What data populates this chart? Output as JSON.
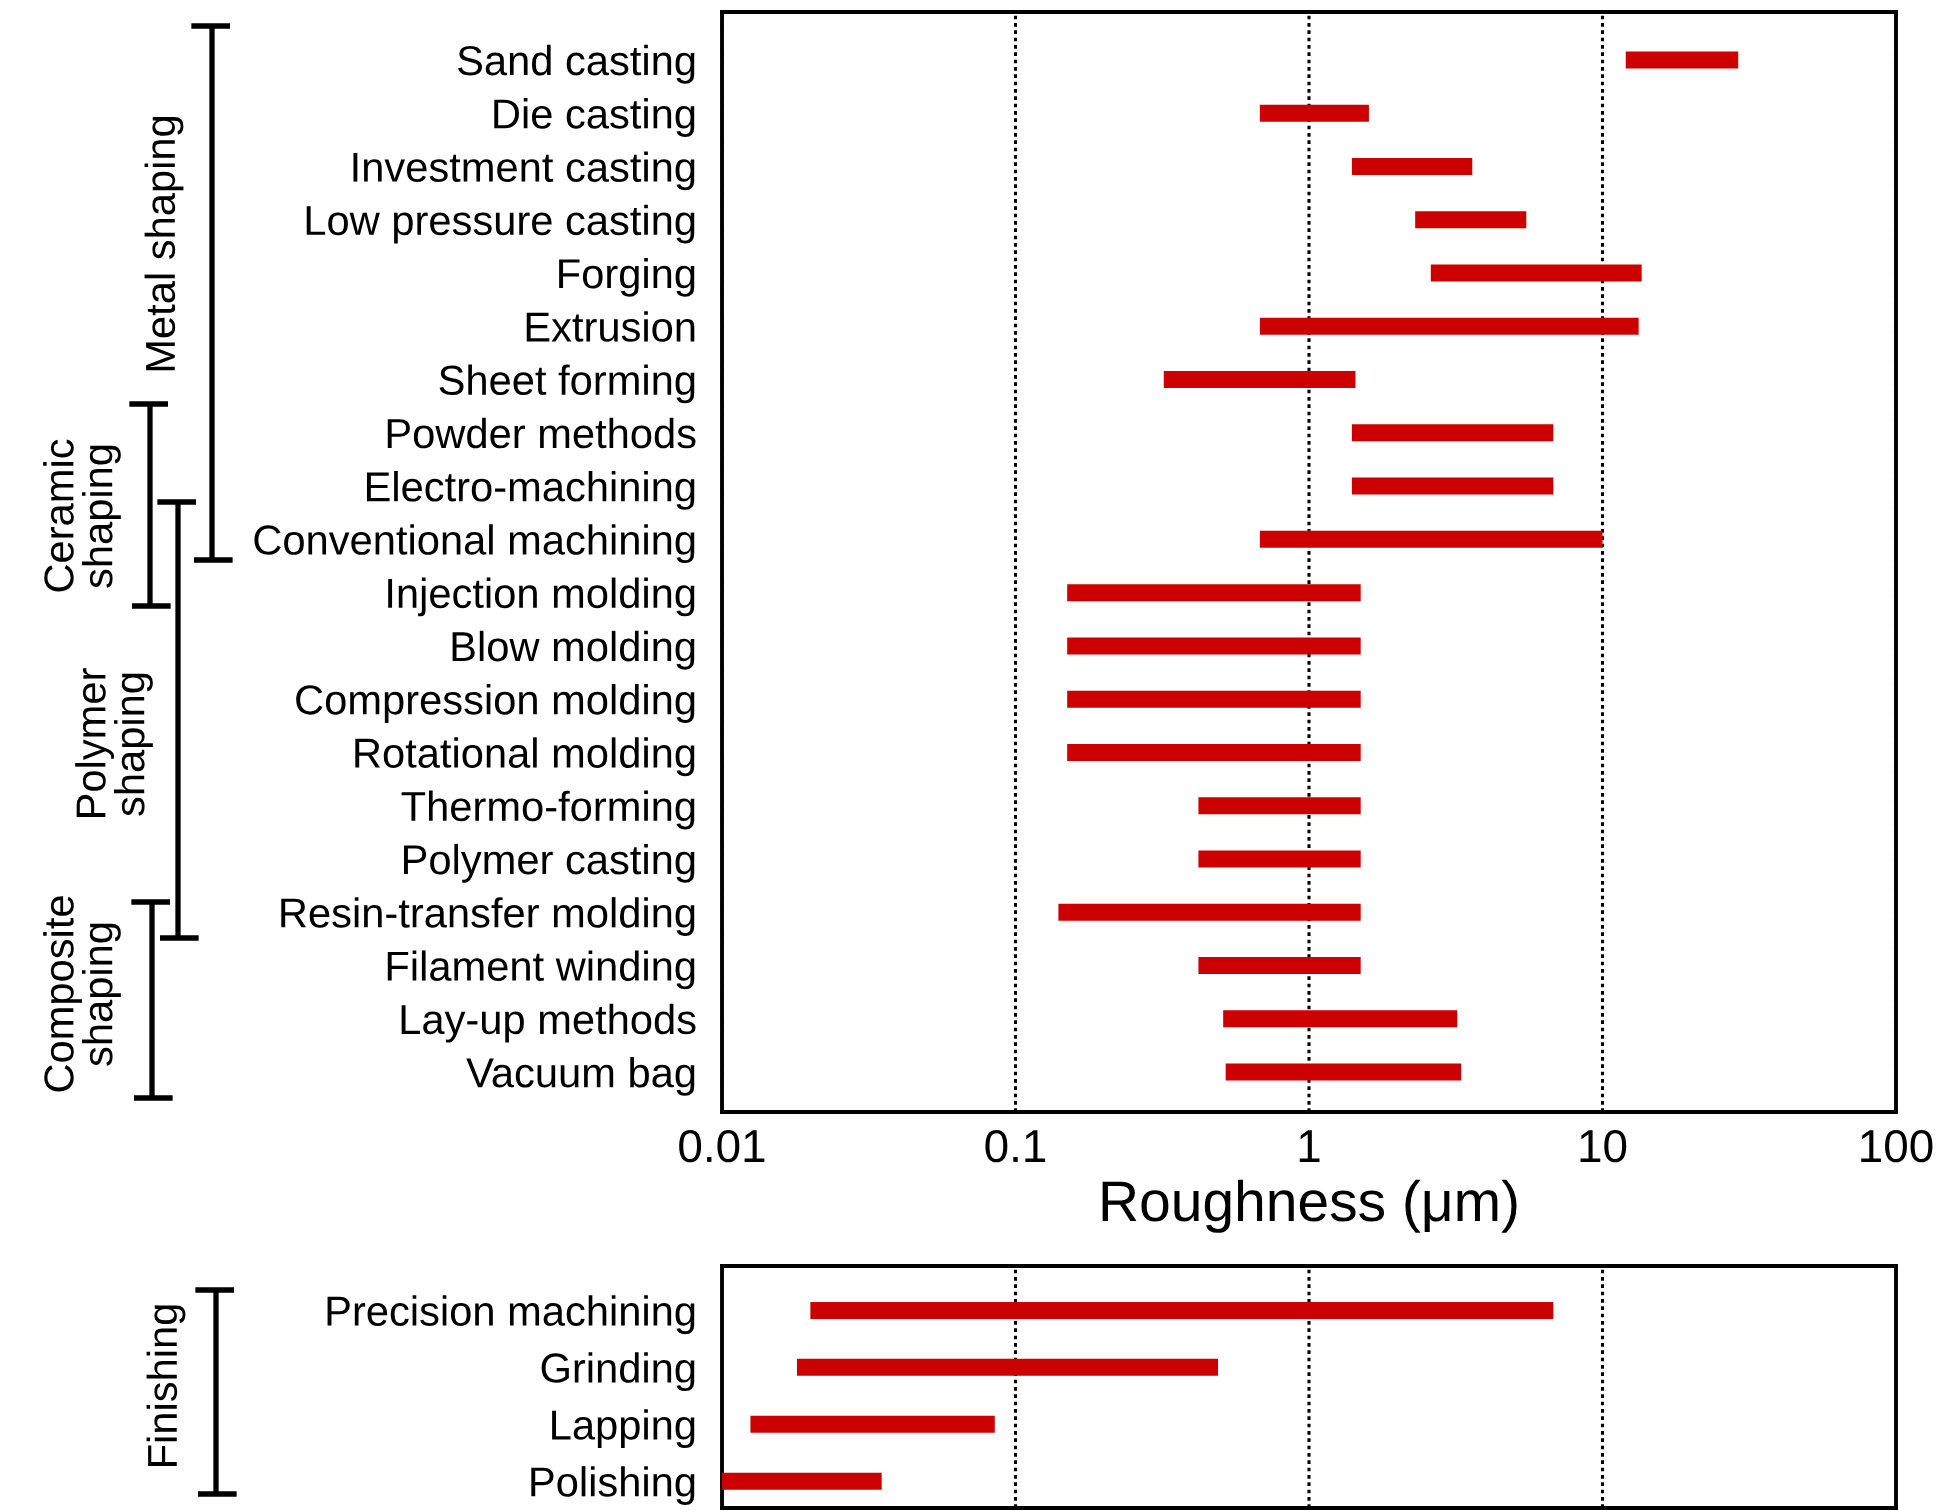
{
  "chart_data": [
    {
      "type": "bar",
      "orientation": "horizontal",
      "log": "x",
      "categories": [
        "Sand casting",
        "Die casting",
        "Investment casting",
        "Low pressure casting",
        "Forging",
        "Extrusion",
        "Sheet forming",
        "Powder methods",
        "Electro-machining",
        "Conventional machining",
        "Injection molding",
        "Blow molding",
        "Compression molding",
        "Rotational molding",
        "Thermo-forming",
        "Polymer casting",
        "Resin-transfer molding",
        "Filament winding",
        "Lay-up methods",
        "Vacuum bag"
      ],
      "base": [
        12,
        0.68,
        1.4,
        2.3,
        2.6,
        0.68,
        0.32,
        1.4,
        1.4,
        0.68,
        0.15,
        0.15,
        0.15,
        0.15,
        0.42,
        0.42,
        0.14,
        0.42,
        0.51,
        0.52
      ],
      "values": [
        17,
        0.92,
        2.2,
        3.2,
        11,
        12.6,
        1.12,
        5.4,
        5.4,
        9.32,
        1.35,
        1.35,
        1.35,
        1.35,
        1.08,
        1.08,
        1.36,
        1.08,
        2.69,
        2.78
      ],
      "color": "#cc0000",
      "xlim": [
        0.01,
        100
      ],
      "xticks": [
        0.01,
        0.1,
        1,
        10,
        100
      ],
      "xlabel": "Roughness (μm)",
      "grid": "x",
      "annotations": [
        "Metal shaping",
        "Ceramic\nshaping",
        "Polymer\nshaping",
        "Composite\nshaping"
      ]
    },
    {
      "type": "bar",
      "orientation": "horizontal",
      "log": "x",
      "categories": [
        "Precision machining",
        "Grinding",
        "Lapping",
        "Polishing"
      ],
      "base": [
        0.02,
        0.018,
        0.0125,
        0.01
      ],
      "values": [
        6.78,
        0.472,
        0.0725,
        0.025
      ],
      "color": "#cc0000",
      "xlim": [
        0.01,
        100
      ],
      "xticks": [
        {
          "value": 0.1,
          "label": null
        },
        {
          "value": 1,
          "label": null
        },
        {
          "value": 10,
          "label": null
        }
      ],
      "tick_labels": "y",
      "grid": "x",
      "annotations": [
        "Finishing"
      ]
    }
  ]
}
